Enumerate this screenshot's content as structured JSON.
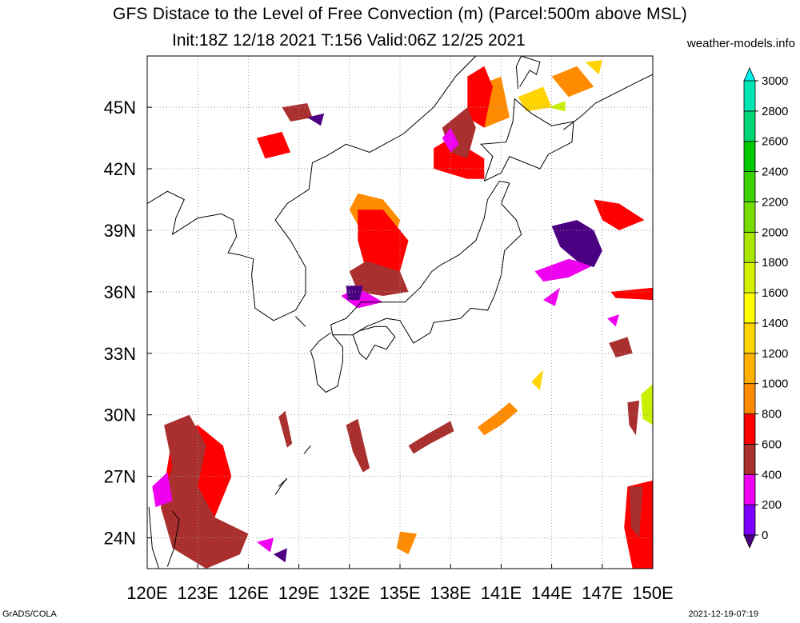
{
  "title": "GFS Distace to the Level of Free Convection (m) (Parcel:500m above MSL)",
  "subtitle": "Init:18Z 12/18 2021 T:156 Valid:06Z 12/25 2021",
  "website": "weather-models.info",
  "footer_left": "GrADS/COLA",
  "footer_right": "2021-12-19-07:19",
  "map": {
    "lon_range": [
      120,
      150
    ],
    "lat_range": [
      22.5,
      47.5
    ],
    "lon_ticks": [
      "120E",
      "123E",
      "126E",
      "129E",
      "132E",
      "135E",
      "138E",
      "141E",
      "144E",
      "147E",
      "150E"
    ],
    "lat_ticks": [
      "24N",
      "27N",
      "30N",
      "33N",
      "36N",
      "39N",
      "42N",
      "45N"
    ],
    "grid": true
  },
  "legend": {
    "labels": [
      "0",
      "200",
      "400",
      "600",
      "800",
      "1000",
      "1200",
      "1400",
      "1600",
      "1800",
      "2000",
      "2200",
      "2400",
      "2600",
      "2800",
      "3000"
    ],
    "colors": [
      "#7e00ff",
      "#f000f0",
      "#aa2f2f",
      "#ff0000",
      "#ff8c00",
      "#ffb000",
      "#ffd400",
      "#ffff00",
      "#d4f000",
      "#a8e600",
      "#78dc00",
      "#3cd200",
      "#00c800",
      "#00d878",
      "#00e6b4",
      "#00f0f0"
    ],
    "above_color": "#00f0f0",
    "below_color": "#4b0082"
  },
  "fields": [
    {
      "color": "#ff8c00",
      "polys": [
        [
          [
            132.5,
            40.8
          ],
          [
            134,
            40.5
          ],
          [
            135,
            39.5
          ],
          [
            134.5,
            38
          ],
          [
            133,
            38.5
          ],
          [
            132,
            40
          ]
        ],
        [
          [
            139.5,
            46
          ],
          [
            141,
            46.5
          ],
          [
            141.5,
            44.5
          ],
          [
            140,
            44
          ]
        ],
        [
          [
            144,
            46.5
          ],
          [
            145.5,
            47
          ],
          [
            146.5,
            46
          ],
          [
            145,
            45.5
          ]
        ],
        [
          [
            135,
            24.3
          ],
          [
            136,
            24.2
          ],
          [
            135.5,
            23.2
          ],
          [
            134.8,
            23.5
          ]
        ],
        [
          [
            140,
            29
          ],
          [
            141,
            29.5
          ],
          [
            142,
            30.2
          ],
          [
            141.5,
            30.6
          ],
          [
            140.6,
            30
          ],
          [
            139.6,
            29.4
          ]
        ]
      ]
    },
    {
      "color": "#ffd400",
      "polys": [
        [
          [
            142,
            45.5
          ],
          [
            143.5,
            46
          ],
          [
            144,
            45
          ],
          [
            142.5,
            44.8
          ]
        ],
        [
          [
            146,
            47.2
          ],
          [
            147,
            47.3
          ],
          [
            146.8,
            46.6
          ]
        ],
        [
          [
            142.8,
            31.6
          ],
          [
            143.5,
            32.2
          ],
          [
            143.3,
            31.2
          ]
        ]
      ]
    },
    {
      "color": "#c8f000",
      "polys": [
        [
          [
            143.8,
            45
          ],
          [
            144.8,
            45.3
          ],
          [
            144.8,
            44.8
          ]
        ],
        [
          [
            149.3,
            31
          ],
          [
            150,
            31.5
          ],
          [
            150,
            29.5
          ],
          [
            149.4,
            29.8
          ]
        ]
      ]
    },
    {
      "color": "#ff0000",
      "polys": [
        [
          [
            132.5,
            40
          ],
          [
            134,
            40
          ],
          [
            135.5,
            38.5
          ],
          [
            135,
            37
          ],
          [
            133,
            37
          ],
          [
            132.5,
            38.5
          ]
        ],
        [
          [
            137,
            43
          ],
          [
            138,
            43.5
          ],
          [
            139,
            43
          ],
          [
            140,
            42.5
          ],
          [
            140,
            41.5
          ],
          [
            139,
            41.5
          ],
          [
            137,
            42
          ]
        ],
        [
          [
            139,
            46.5
          ],
          [
            140,
            47
          ],
          [
            140.5,
            46
          ],
          [
            140,
            44
          ],
          [
            139,
            44.5
          ]
        ],
        [
          [
            126.5,
            43.5
          ],
          [
            128,
            43.8
          ],
          [
            128.5,
            42.8
          ],
          [
            127,
            42.5
          ]
        ],
        [
          [
            121.5,
            29
          ],
          [
            123,
            29.5
          ],
          [
            124.5,
            28.5
          ],
          [
            125,
            27
          ],
          [
            124,
            25
          ],
          [
            122,
            25
          ],
          [
            121,
            26.5
          ]
        ],
        [
          [
            146.5,
            40.5
          ],
          [
            148,
            40.3
          ],
          [
            149.5,
            39.5
          ],
          [
            148,
            39
          ],
          [
            147,
            39.5
          ]
        ],
        [
          [
            148.5,
            26.5
          ],
          [
            150,
            26.8
          ],
          [
            150,
            22.5
          ],
          [
            148.8,
            22.5
          ],
          [
            148.3,
            24.5
          ]
        ],
        [
          [
            147.5,
            36
          ],
          [
            150,
            36.2
          ],
          [
            150,
            35.6
          ],
          [
            147.8,
            35.7
          ]
        ]
      ]
    },
    {
      "color": "#aa2f2f",
      "polys": [
        [
          [
            132,
            37
          ],
          [
            133,
            37.5
          ],
          [
            135,
            37
          ],
          [
            135.5,
            36
          ],
          [
            134,
            35.8
          ],
          [
            132.5,
            36
          ]
        ],
        [
          [
            137.5,
            44
          ],
          [
            139,
            45
          ],
          [
            139.5,
            44
          ],
          [
            139,
            42.5
          ],
          [
            138,
            42.8
          ]
        ],
        [
          [
            121,
            29.5
          ],
          [
            122.5,
            30
          ],
          [
            123.5,
            28.5
          ],
          [
            123,
            26.5
          ],
          [
            124,
            25
          ],
          [
            126,
            24.2
          ],
          [
            125.5,
            23.2
          ],
          [
            123.5,
            22.5
          ],
          [
            121.5,
            23.5
          ],
          [
            120.8,
            25.5
          ],
          [
            121.5,
            27.5
          ]
        ],
        [
          [
            128,
            45
          ],
          [
            129.5,
            45.2
          ],
          [
            129.8,
            44.5
          ],
          [
            128.5,
            44.3
          ]
        ],
        [
          [
            148.6,
            26.5
          ],
          [
            149.4,
            26.5
          ],
          [
            149.2,
            24
          ],
          [
            148.7,
            24.5
          ]
        ],
        [
          [
            147.4,
            33.5
          ],
          [
            148.5,
            33.8
          ],
          [
            148.8,
            33
          ],
          [
            147.8,
            32.8
          ]
        ],
        [
          [
            148.5,
            30.6
          ],
          [
            149.2,
            30.7
          ],
          [
            149,
            29
          ],
          [
            148.6,
            29.5
          ]
        ],
        [
          [
            131.8,
            29.5
          ],
          [
            132.5,
            29.8
          ],
          [
            133.2,
            27.4
          ],
          [
            132.8,
            27.2
          ],
          [
            132.2,
            28.2
          ]
        ],
        [
          [
            136.5,
            29
          ],
          [
            138,
            29.7
          ],
          [
            138.2,
            29.2
          ],
          [
            136.8,
            28.6
          ],
          [
            135.8,
            28.1
          ],
          [
            135.5,
            28.5
          ]
        ],
        [
          [
            127.8,
            29.9
          ],
          [
            128.2,
            30.2
          ],
          [
            128.6,
            28.6
          ],
          [
            128.3,
            28.4
          ]
        ]
      ]
    },
    {
      "color": "#f000f0",
      "polys": [
        [
          [
            137.5,
            43.5
          ],
          [
            138,
            44
          ],
          [
            138.5,
            43.2
          ],
          [
            138,
            42.8
          ]
        ],
        [
          [
            131.5,
            35.8
          ],
          [
            132.5,
            36.2
          ],
          [
            134,
            35.5
          ],
          [
            132.5,
            35.2
          ]
        ],
        [
          [
            143,
            37
          ],
          [
            145,
            37.6
          ],
          [
            146.5,
            37.3
          ],
          [
            145,
            36.7
          ],
          [
            143.5,
            36.5
          ]
        ],
        [
          [
            143.5,
            35.6
          ],
          [
            144.5,
            36.2
          ],
          [
            144.2,
            35.3
          ]
        ],
        [
          [
            126.5,
            23.8
          ],
          [
            127.5,
            24
          ],
          [
            127.3,
            23.3
          ]
        ],
        [
          [
            120.3,
            26.5
          ],
          [
            121.2,
            27.2
          ],
          [
            121.5,
            25.8
          ],
          [
            120.5,
            25.5
          ]
        ],
        [
          [
            147.3,
            34.7
          ],
          [
            148,
            34.9
          ],
          [
            147.8,
            34.3
          ]
        ]
      ]
    },
    {
      "color": "#4b0082",
      "polys": [
        [
          [
            144,
            39.2
          ],
          [
            145.5,
            39.5
          ],
          [
            146.5,
            39
          ],
          [
            147,
            38
          ],
          [
            146.5,
            37.2
          ],
          [
            145.5,
            37.5
          ],
          [
            144.5,
            38.2
          ]
        ],
        [
          [
            131.8,
            36.3
          ],
          [
            132.8,
            36.3
          ],
          [
            132.6,
            35.6
          ],
          [
            131.9,
            35.6
          ]
        ],
        [
          [
            129.5,
            44.5
          ],
          [
            130.5,
            44.7
          ],
          [
            130.3,
            44.1
          ]
        ],
        [
          [
            127.5,
            23.2
          ],
          [
            128.3,
            23.5
          ],
          [
            128.2,
            22.8
          ]
        ]
      ]
    }
  ],
  "coastlines": [
    [
      [
        126.3,
        37.6
      ],
      [
        126.2,
        36.8
      ],
      [
        126.4,
        35.2
      ],
      [
        127.5,
        34.6
      ],
      [
        128.8,
        35.1
      ],
      [
        129.4,
        35.9
      ],
      [
        129.4,
        37.2
      ],
      [
        128.5,
        38.5
      ],
      [
        127.6,
        39.5
      ],
      [
        128.3,
        40.3
      ],
      [
        129.6,
        41
      ],
      [
        129.8,
        42.3
      ],
      [
        130.6,
        42.6
      ],
      [
        131.8,
        43.2
      ],
      [
        133.2,
        42.8
      ],
      [
        135.2,
        43.7
      ],
      [
        137,
        45
      ],
      [
        138.3,
        46.5
      ],
      [
        139.5,
        47.5
      ]
    ],
    [
      [
        126.3,
        37.6
      ],
      [
        125.5,
        37.8
      ],
      [
        124.8,
        37.9
      ],
      [
        125.3,
        38.7
      ],
      [
        125.1,
        39.5
      ],
      [
        124.4,
        39.8
      ],
      [
        123,
        39.6
      ],
      [
        121.5,
        38.8
      ],
      [
        121.7,
        39.6
      ],
      [
        122.2,
        40.5
      ],
      [
        121.2,
        40.9
      ],
      [
        120,
        40.3
      ]
    ],
    [
      [
        141.5,
        41.3
      ],
      [
        141,
        40.3
      ],
      [
        141.9,
        39.5
      ],
      [
        142.2,
        38.8
      ],
      [
        141.2,
        38
      ],
      [
        141,
        36.8
      ],
      [
        140.6,
        35.8
      ],
      [
        140.2,
        35.1
      ],
      [
        139.2,
        35.2
      ],
      [
        138.6,
        34.7
      ],
      [
        137.8,
        34.6
      ],
      [
        137,
        34.5
      ],
      [
        136.8,
        34
      ],
      [
        135.8,
        33.5
      ],
      [
        135,
        34.6
      ],
      [
        134.2,
        34.7
      ],
      [
        133,
        34.3
      ],
      [
        132.2,
        33.9
      ],
      [
        131,
        33.9
      ],
      [
        130.9,
        34.4
      ],
      [
        131.8,
        34.7
      ],
      [
        132.7,
        35.5
      ],
      [
        133.5,
        35.5
      ],
      [
        135.3,
        35.5
      ],
      [
        136.2,
        36.2
      ],
      [
        136.9,
        37
      ],
      [
        137.4,
        37.3
      ],
      [
        138.5,
        37.8
      ],
      [
        139.5,
        38.5
      ],
      [
        140,
        39.6
      ],
      [
        140.2,
        40.5
      ],
      [
        140.9,
        41.4
      ],
      [
        141.5,
        41.3
      ]
    ],
    [
      [
        130.9,
        34
      ],
      [
        130.2,
        33.6
      ],
      [
        129.7,
        33.1
      ],
      [
        129.9,
        32.6
      ],
      [
        130.1,
        31.5
      ],
      [
        130.6,
        31.1
      ],
      [
        131.3,
        31.4
      ],
      [
        131.6,
        32.6
      ],
      [
        131.6,
        33.3
      ],
      [
        131,
        33.9
      ]
    ],
    [
      [
        132.2,
        33.9
      ],
      [
        132.6,
        33
      ],
      [
        133,
        32.7
      ],
      [
        133.5,
        33.4
      ],
      [
        134.2,
        33.2
      ],
      [
        134.7,
        33.8
      ],
      [
        134.2,
        34.3
      ],
      [
        133.5,
        34.3
      ],
      [
        132.6,
        34.1
      ],
      [
        132.2,
        33.9
      ]
    ],
    [
      [
        140,
        41.4
      ],
      [
        140.5,
        42.6
      ],
      [
        139.8,
        43.2
      ],
      [
        141.3,
        43.3
      ],
      [
        141.7,
        44.3
      ],
      [
        141.8,
        45.4
      ],
      [
        142.8,
        44.7
      ],
      [
        144,
        44.1
      ],
      [
        145.3,
        44.3
      ],
      [
        145.2,
        43.3
      ],
      [
        143.8,
        42.7
      ],
      [
        143.3,
        42
      ],
      [
        141.5,
        42.6
      ],
      [
        141,
        41.8
      ],
      [
        140,
        41.4
      ]
    ],
    [
      [
        142,
        45.9
      ],
      [
        141.9,
        47
      ],
      [
        142.2,
        47.5
      ]
    ],
    [
      [
        142.2,
        47.5
      ],
      [
        143.3,
        47.2
      ],
      [
        143.1,
        46.6
      ],
      [
        142.7,
        46.8
      ],
      [
        142.1,
        46
      ]
    ],
    [
      [
        144.7,
        43.9
      ],
      [
        145.8,
        44.6
      ],
      [
        146.6,
        45.2
      ],
      [
        147.8,
        45.7
      ],
      [
        149,
        46.2
      ],
      [
        150,
        46.6
      ]
    ],
    [
      [
        120.1,
        25.5
      ],
      [
        120.3,
        23.5
      ],
      [
        120.7,
        22.5
      ]
    ],
    [
      [
        121.2,
        22.6
      ],
      [
        121.6,
        23.5
      ],
      [
        121.9,
        24.9
      ],
      [
        121.5,
        25.3
      ]
    ],
    [
      [
        127.6,
        26.1
      ],
      [
        128,
        26.6
      ],
      [
        128.3,
        26.9
      ],
      [
        127.8,
        26.5
      ]
    ],
    [
      [
        129.3,
        28.1
      ],
      [
        129.7,
        28.5
      ]
    ],
    [
      [
        128.8,
        34.8
      ],
      [
        129.4,
        34.3
      ]
    ]
  ]
}
